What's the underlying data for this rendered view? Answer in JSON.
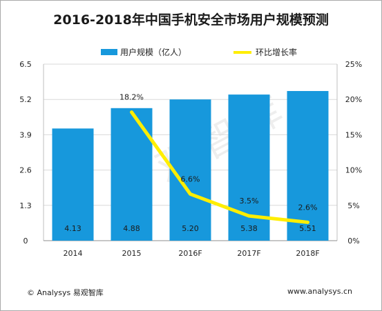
{
  "header": {
    "title": "2016-2018年中国手机安全市场用户规模预测"
  },
  "watermark": "易观智库",
  "footer": {
    "left": "© Analysys 易观智库",
    "right": "www.analysys.cn"
  },
  "colors": {
    "bar": "#1798dc",
    "line": "#ffee00"
  },
  "chart_data": {
    "type": "bar",
    "categories": [
      "2014",
      "2015",
      "2016F",
      "2017F",
      "2018F"
    ],
    "series": [
      {
        "name": "用户规模（亿人）",
        "type": "bar",
        "axis": "left",
        "values": [
          4.13,
          4.88,
          5.2,
          5.38,
          5.51
        ],
        "labels": [
          "4.13",
          "4.88",
          "5.20",
          "5.38",
          "5.51"
        ]
      },
      {
        "name": "环比增长率",
        "type": "line",
        "axis": "right",
        "values": [
          null,
          18.2,
          6.6,
          3.5,
          2.6
        ],
        "labels": [
          "",
          "18.2%",
          "6.6%",
          "3.5%",
          "2.6%"
        ]
      }
    ],
    "y_left": {
      "ticks": [
        "0",
        "1.3",
        "2.6",
        "3.9",
        "5.2",
        "6.5"
      ],
      "ylim": [
        0,
        6.5
      ]
    },
    "y_right": {
      "ticks": [
        "0%",
        "5%",
        "10%",
        "15%",
        "20%",
        "25%"
      ],
      "ylim": [
        0,
        25
      ]
    },
    "legend_position": "top"
  }
}
